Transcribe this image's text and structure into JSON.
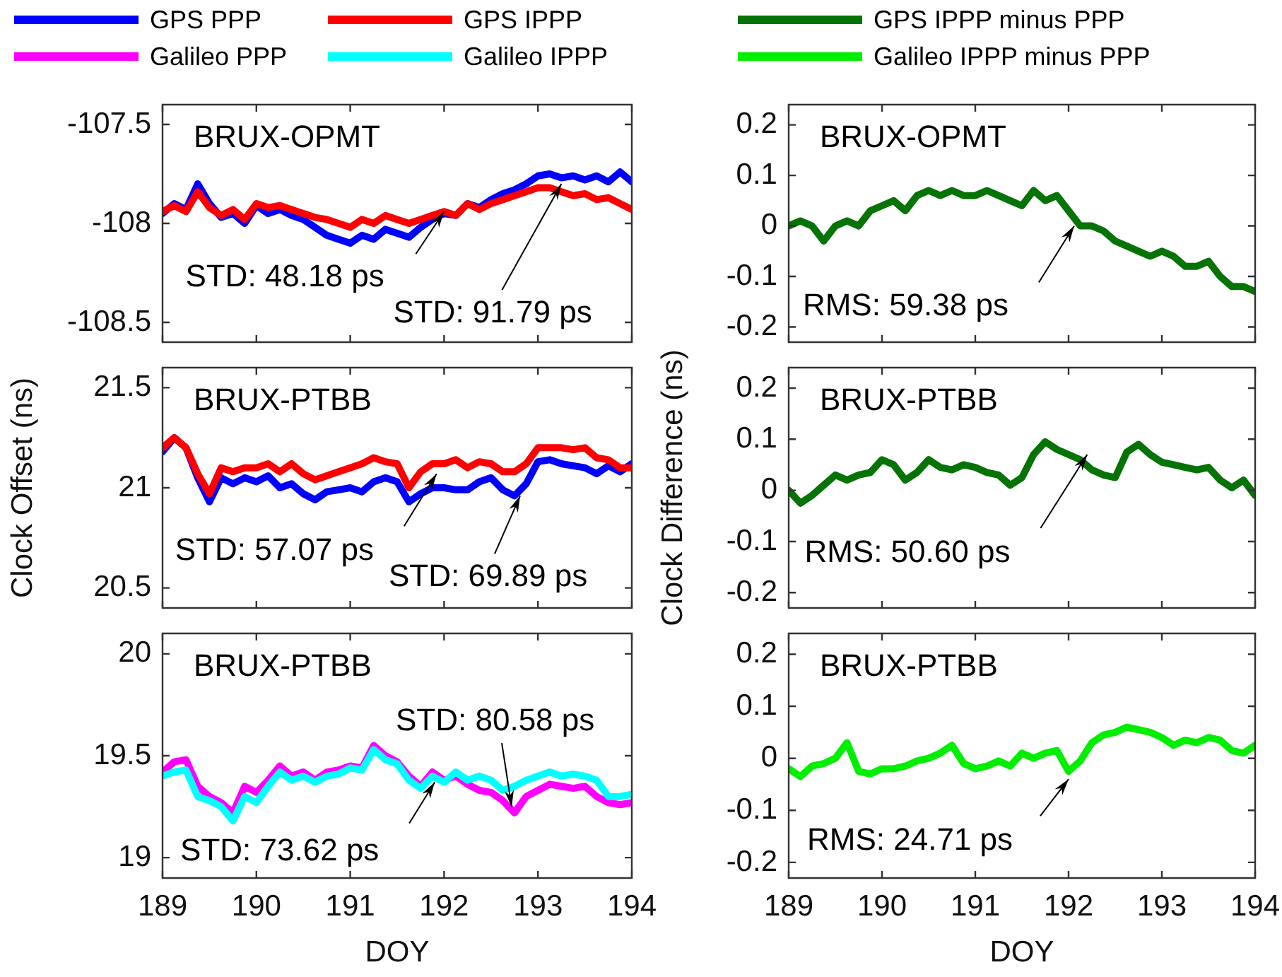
{
  "chart_data": [
    {
      "type": "line",
      "legend": "top",
      "marker": "none",
      "line_style": "solid",
      "tick_labels": "y",
      "xlim": [
        189,
        194
      ],
      "xticks": [
        189,
        190,
        191,
        192,
        193,
        194
      ],
      "ylim": [
        -108.6,
        -107.4
      ],
      "yticks": [
        -108.5,
        -108,
        -107.5
      ],
      "x": [
        189,
        189.125,
        189.25,
        189.375,
        189.5,
        189.625,
        189.75,
        189.875,
        190,
        190.125,
        190.25,
        190.375,
        190.5,
        190.625,
        190.75,
        190.875,
        191,
        191.125,
        191.25,
        191.375,
        191.5,
        191.625,
        191.75,
        191.875,
        192,
        192.125,
        192.25,
        192.375,
        192.5,
        192.625,
        192.75,
        192.875,
        193,
        193.125,
        193.25,
        193.375,
        193.5,
        193.625,
        193.75,
        193.875,
        194
      ],
      "series": [
        {
          "name": "GPS PPP",
          "color": "#0000ff",
          "values": [
            -107.95,
            -107.9,
            -107.93,
            -107.8,
            -107.9,
            -107.97,
            -107.95,
            -108,
            -107.91,
            -107.95,
            -107.93,
            -107.96,
            -107.98,
            -108.02,
            -108.06,
            -108.08,
            -108.1,
            -108.06,
            -108.08,
            -108.03,
            -108.05,
            -108.07,
            -108.02,
            -107.98,
            -107.95,
            -107.96,
            -107.9,
            -107.92,
            -107.88,
            -107.85,
            -107.83,
            -107.8,
            -107.76,
            -107.75,
            -107.77,
            -107.76,
            -107.78,
            -107.76,
            -107.79,
            -107.74,
            -107.79
          ]
        },
        {
          "name": "GPS IPPP",
          "color": "#ff0000",
          "values": [
            -107.94,
            -107.91,
            -107.94,
            -107.84,
            -107.92,
            -107.96,
            -107.93,
            -107.98,
            -107.9,
            -107.92,
            -107.91,
            -107.93,
            -107.95,
            -107.97,
            -107.98,
            -108,
            -108.02,
            -107.98,
            -108,
            -107.96,
            -107.98,
            -108,
            -107.98,
            -107.96,
            -107.94,
            -107.96,
            -107.9,
            -107.93,
            -107.9,
            -107.88,
            -107.86,
            -107.84,
            -107.82,
            -107.82,
            -107.84,
            -107.86,
            -107.85,
            -107.88,
            -107.87,
            -107.9,
            -107.93
          ]
        }
      ],
      "annotations": [
        "BRUX-OPMT",
        {
          "text": "STD: 48.18 ps",
          "x": 192,
          "y": -107.94
        },
        {
          "text": "STD: 91.79 ps",
          "x": 193.25,
          "y": -107.8
        }
      ]
    },
    {
      "type": "line",
      "legend": "top",
      "marker": "none",
      "line_style": "solid",
      "tick_labels": "y",
      "xlim": [
        189,
        194
      ],
      "xticks": [
        189,
        190,
        191,
        192,
        193,
        194
      ],
      "ylim": [
        -0.23,
        0.24
      ],
      "yticks": [
        -0.2,
        -0.1,
        0,
        0.1,
        0.2
      ],
      "x": [
        189,
        189.125,
        189.25,
        189.375,
        189.5,
        189.625,
        189.75,
        189.875,
        190,
        190.125,
        190.25,
        190.375,
        190.5,
        190.625,
        190.75,
        190.875,
        191,
        191.125,
        191.25,
        191.375,
        191.5,
        191.625,
        191.75,
        191.875,
        192,
        192.125,
        192.25,
        192.375,
        192.5,
        192.625,
        192.75,
        192.875,
        193,
        193.125,
        193.25,
        193.375,
        193.5,
        193.625,
        193.75,
        193.875,
        194
      ],
      "series": [
        {
          "name": "GPS IPPP minus PPP",
          "color": "#067306",
          "values": [
            0,
            0.01,
            0,
            -0.03,
            0,
            0.01,
            0,
            0.03,
            0.04,
            0.05,
            0.03,
            0.06,
            0.07,
            0.06,
            0.07,
            0.06,
            0.06,
            0.07,
            0.06,
            0.05,
            0.04,
            0.07,
            0.05,
            0.06,
            0.03,
            0,
            0,
            -0.01,
            -0.03,
            -0.04,
            -0.05,
            -0.06,
            -0.05,
            -0.06,
            -0.08,
            -0.08,
            -0.07,
            -0.1,
            -0.12,
            -0.12,
            -0.13
          ]
        }
      ],
      "annotations": [
        "BRUX-OPMT",
        {
          "text": "RMS: 59.38 ps",
          "x": 192.06,
          "y": 0
        }
      ]
    },
    {
      "type": "line",
      "legend": "top",
      "marker": "none",
      "line_style": "solid",
      "tick_labels": "y",
      "ylabel": "Clock Offset (ns)",
      "xlim": [
        189,
        194
      ],
      "xticks": [
        189,
        190,
        191,
        192,
        193,
        194
      ],
      "ylim": [
        20.4,
        21.6
      ],
      "yticks": [
        20.5,
        21,
        21.5
      ],
      "x": [
        189,
        189.125,
        189.25,
        189.375,
        189.5,
        189.625,
        189.75,
        189.875,
        190,
        190.125,
        190.25,
        190.375,
        190.5,
        190.625,
        190.75,
        190.875,
        191,
        191.125,
        191.25,
        191.375,
        191.5,
        191.625,
        191.75,
        191.875,
        192,
        192.125,
        192.25,
        192.375,
        192.5,
        192.625,
        192.75,
        192.875,
        193,
        193.125,
        193.25,
        193.375,
        193.5,
        193.625,
        193.75,
        193.875,
        194
      ],
      "series": [
        {
          "name": "GPS PPP",
          "color": "#0000ff",
          "values": [
            21.18,
            21.25,
            21.2,
            21.05,
            20.93,
            21.05,
            21.02,
            21.05,
            21.03,
            21.06,
            21,
            21.02,
            20.97,
            20.94,
            20.98,
            20.99,
            21,
            20.98,
            21.03,
            21.05,
            21.03,
            20.93,
            20.97,
            21,
            21,
            20.99,
            20.99,
            21.03,
            21.05,
            20.99,
            20.96,
            21.02,
            21.13,
            21.14,
            21.12,
            21.11,
            21.1,
            21.07,
            21.11,
            21.08,
            21.12
          ]
        },
        {
          "name": "GPS IPPP",
          "color": "#ff0000",
          "values": [
            21.2,
            21.25,
            21.2,
            21.07,
            20.97,
            21.1,
            21.08,
            21.1,
            21.1,
            21.12,
            21.08,
            21.12,
            21.07,
            21.04,
            21.06,
            21.08,
            21.1,
            21.12,
            21.15,
            21.13,
            21.12,
            21,
            21.08,
            21.12,
            21.12,
            21.14,
            21.1,
            21.13,
            21.12,
            21.08,
            21.08,
            21.12,
            21.2,
            21.2,
            21.2,
            21.19,
            21.2,
            21.15,
            21.14,
            21.1,
            21.1
          ]
        }
      ],
      "annotations": [
        "BRUX-PTBB",
        {
          "text": "STD: 57.07 ps",
          "x": 191.92,
          "y": 21.07
        },
        {
          "text": "STD: 69.89 ps",
          "x": 192.81,
          "y": 20.96
        }
      ]
    },
    {
      "type": "line",
      "legend": "top",
      "marker": "none",
      "line_style": "solid",
      "tick_labels": "y",
      "ylabel": "Clock Difference (ns)",
      "xlim": [
        189,
        194
      ],
      "xticks": [
        189,
        190,
        191,
        192,
        193,
        194
      ],
      "ylim": [
        -0.23,
        0.24
      ],
      "yticks": [
        -0.2,
        -0.1,
        0,
        0.1,
        0.2
      ],
      "x": [
        189,
        189.125,
        189.25,
        189.375,
        189.5,
        189.625,
        189.75,
        189.875,
        190,
        190.125,
        190.25,
        190.375,
        190.5,
        190.625,
        190.75,
        190.875,
        191,
        191.125,
        191.25,
        191.375,
        191.5,
        191.625,
        191.75,
        191.875,
        192,
        192.125,
        192.25,
        192.375,
        192.5,
        192.625,
        192.75,
        192.875,
        193,
        193.125,
        193.25,
        193.375,
        193.5,
        193.625,
        193.75,
        193.875,
        194
      ],
      "series": [
        {
          "name": "GPS IPPP minus PPP",
          "color": "#067306",
          "values": [
            0,
            -0.025,
            -0.01,
            0.01,
            0.03,
            0.02,
            0.03,
            0.035,
            0.06,
            0.05,
            0.02,
            0.035,
            0.06,
            0.045,
            0.04,
            0.05,
            0.045,
            0.035,
            0.03,
            0.01,
            0.025,
            0.07,
            0.095,
            0.08,
            0.07,
            0.06,
            0.04,
            0.03,
            0.025,
            0.075,
            0.09,
            0.07,
            0.055,
            0.05,
            0.045,
            0.04,
            0.045,
            0.02,
            0.005,
            0.02,
            -0.01
          ]
        }
      ],
      "annotations": [
        "BRUX-PTBB",
        {
          "text": "RMS: 50.60 ps",
          "x": 192.2,
          "y": 0.07
        }
      ]
    },
    {
      "type": "line",
      "legend": "top",
      "marker": "none",
      "line_style": "solid",
      "xlabel": "DOY",
      "xlim": [
        189,
        194
      ],
      "xticks": [
        189,
        190,
        191,
        192,
        193,
        194
      ],
      "ylim": [
        18.9,
        20.1
      ],
      "yticks": [
        19,
        19.5,
        20
      ],
      "x": [
        189,
        189.125,
        189.25,
        189.375,
        189.5,
        189.625,
        189.75,
        189.875,
        190,
        190.125,
        190.25,
        190.375,
        190.5,
        190.625,
        190.75,
        190.875,
        191,
        191.125,
        191.25,
        191.375,
        191.5,
        191.625,
        191.75,
        191.875,
        192,
        192.125,
        192.25,
        192.375,
        192.5,
        192.625,
        192.75,
        192.875,
        193,
        193.125,
        193.25,
        193.375,
        193.5,
        193.625,
        193.75,
        193.875,
        194
      ],
      "series": [
        {
          "name": "Galileo PPP",
          "color": "#ff00ff",
          "values": [
            19.42,
            19.47,
            19.48,
            19.35,
            19.3,
            19.27,
            19.22,
            19.35,
            19.32,
            19.38,
            19.45,
            19.4,
            19.42,
            19.38,
            19.42,
            19.43,
            19.45,
            19.44,
            19.55,
            19.5,
            19.47,
            19.4,
            19.35,
            19.42,
            19.38,
            19.4,
            19.36,
            19.33,
            19.32,
            19.28,
            19.22,
            19.3,
            19.33,
            19.36,
            19.35,
            19.34,
            19.35,
            19.3,
            19.27,
            19.26,
            19.27
          ]
        },
        {
          "name": "Galileo IPPP",
          "color": "#00ffff",
          "values": [
            19.4,
            19.42,
            19.43,
            19.3,
            19.28,
            19.25,
            19.18,
            19.3,
            19.27,
            19.35,
            19.42,
            19.38,
            19.4,
            19.37,
            19.4,
            19.41,
            19.44,
            19.43,
            19.53,
            19.48,
            19.46,
            19.38,
            19.34,
            19.4,
            19.37,
            19.42,
            19.38,
            19.4,
            19.38,
            19.33,
            19.35,
            19.38,
            19.4,
            19.42,
            19.4,
            19.41,
            19.4,
            19.38,
            19.3,
            19.3,
            19.31
          ]
        }
      ],
      "annotations": [
        "BRUX-PTBB",
        {
          "text": "STD: 73.62 ps",
          "x": 191.9,
          "y": 19.37
        },
        {
          "text": "STD: 80.58 ps",
          "x": 192.72,
          "y": 19.25
        }
      ]
    },
    {
      "type": "line",
      "legend": "top",
      "marker": "none",
      "line_style": "solid",
      "xlabel": "DOY",
      "xlim": [
        189,
        194
      ],
      "xticks": [
        189,
        190,
        191,
        192,
        193,
        194
      ],
      "ylim": [
        -0.23,
        0.24
      ],
      "yticks": [
        -0.2,
        -0.1,
        0,
        0.1,
        0.2
      ],
      "x": [
        189,
        189.125,
        189.25,
        189.375,
        189.5,
        189.625,
        189.75,
        189.875,
        190,
        190.125,
        190.25,
        190.375,
        190.5,
        190.625,
        190.75,
        190.875,
        191,
        191.125,
        191.25,
        191.375,
        191.5,
        191.625,
        191.75,
        191.875,
        192,
        192.125,
        192.25,
        192.375,
        192.5,
        192.625,
        192.75,
        192.875,
        193,
        193.125,
        193.25,
        193.375,
        193.5,
        193.625,
        193.75,
        193.875,
        194
      ],
      "series": [
        {
          "name": "Galileo IPPP minus PPP",
          "color": "#00ee00",
          "values": [
            -0.02,
            -0.035,
            -0.015,
            -0.01,
            0,
            0.03,
            -0.025,
            -0.03,
            -0.02,
            -0.02,
            -0.015,
            -0.005,
            0,
            0.01,
            0.025,
            -0.01,
            -0.02,
            -0.015,
            -0.005,
            -0.015,
            0.01,
            0,
            0.01,
            0.015,
            -0.025,
            -0.005,
            0.03,
            0.045,
            0.05,
            0.06,
            0.055,
            0.05,
            0.04,
            0.025,
            0.035,
            0.03,
            0.04,
            0.035,
            0.015,
            0.01,
            0.025
          ]
        }
      ],
      "annotations": [
        "BRUX-PTBB",
        {
          "text": "RMS: 24.71 ps",
          "x": 192,
          "y": -0.04
        }
      ]
    }
  ]
}
